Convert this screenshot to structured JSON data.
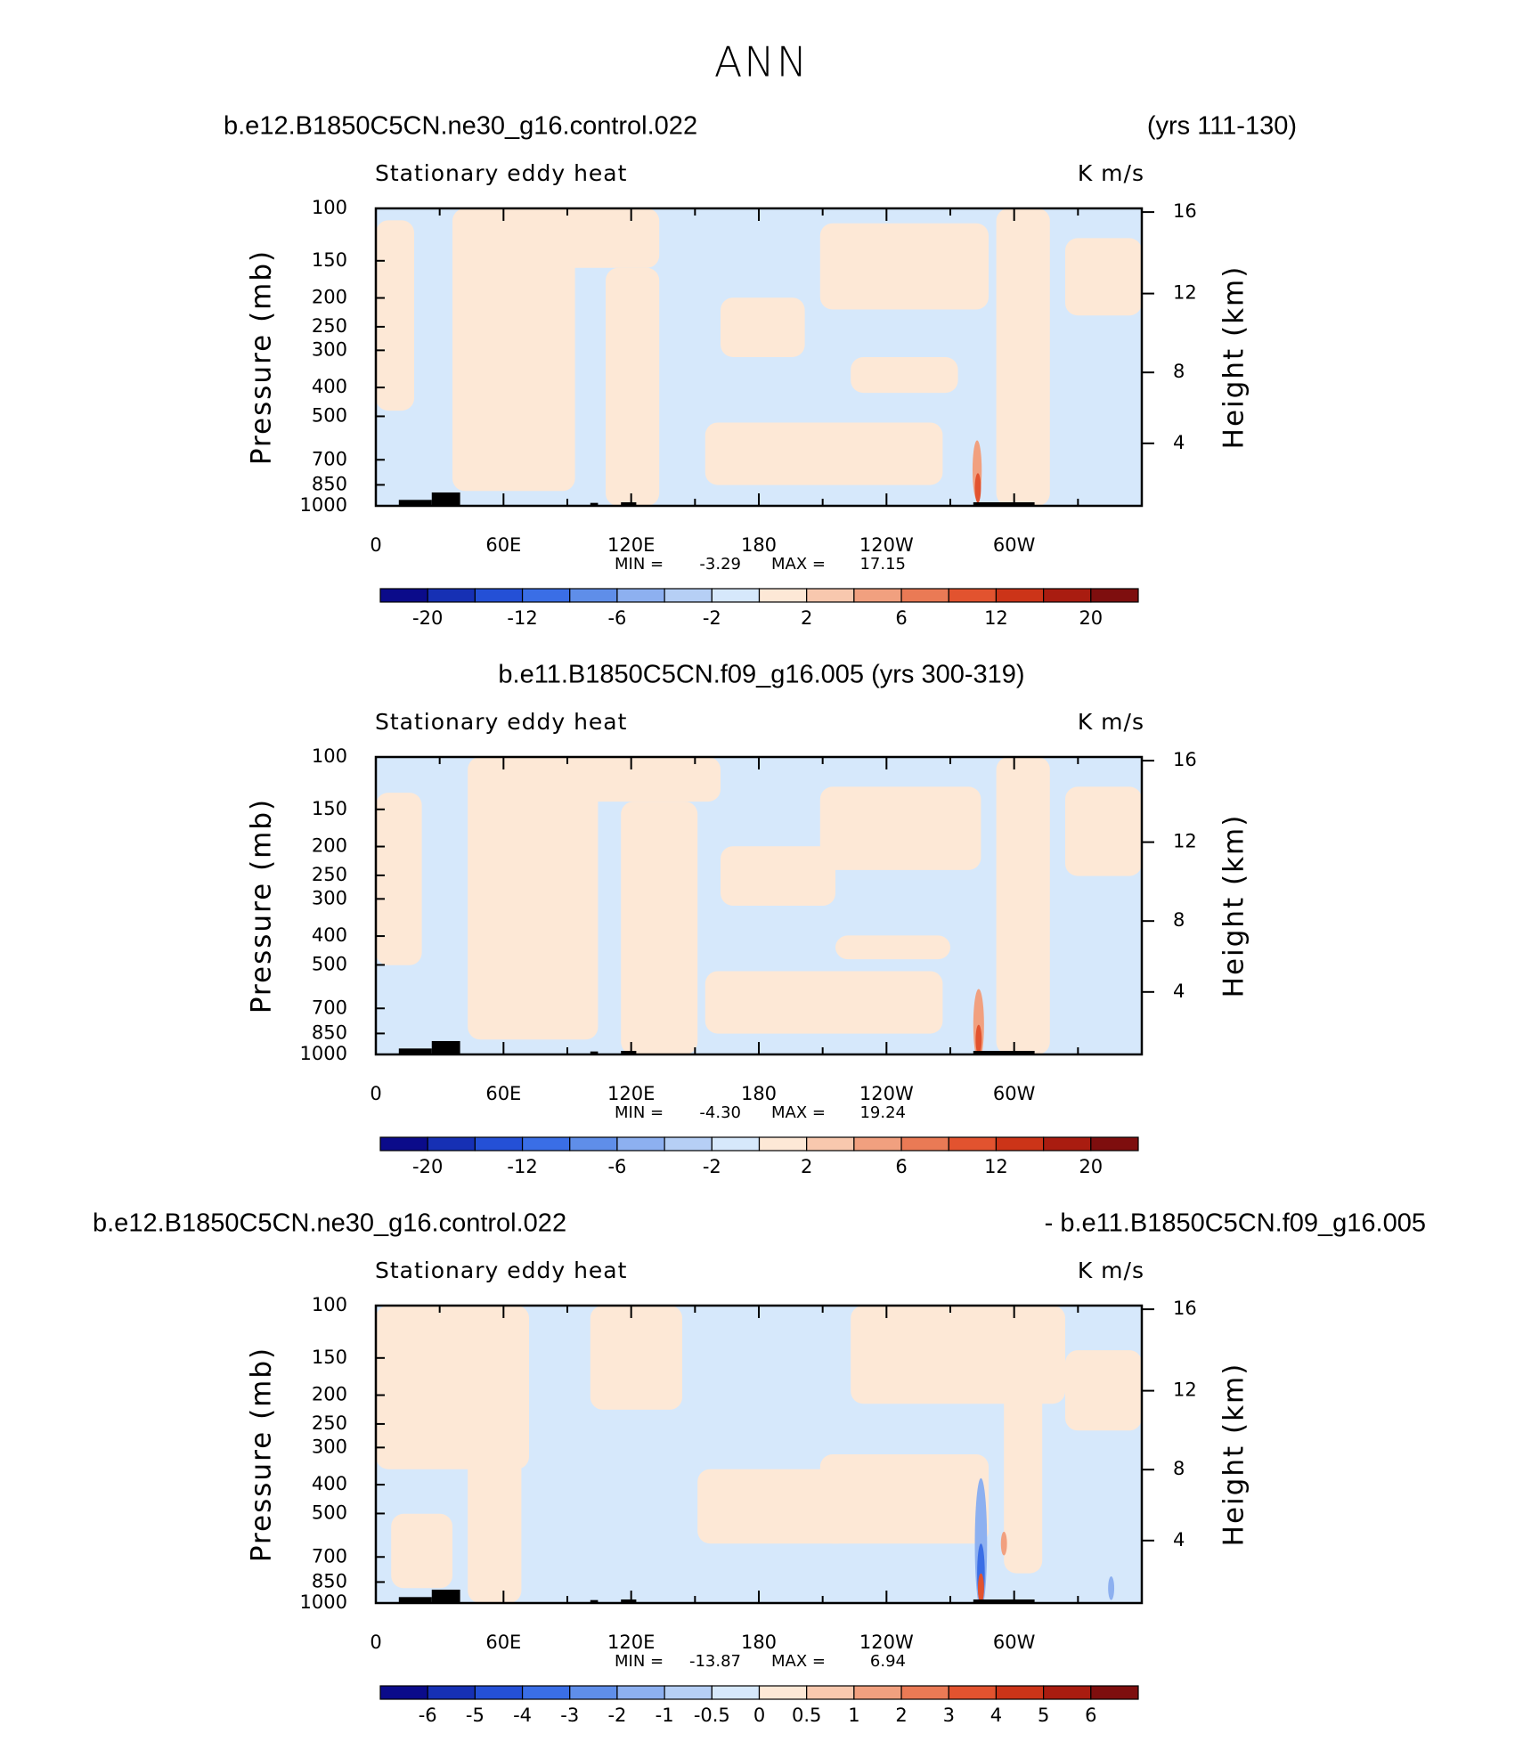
{
  "title": "ANN",
  "chart_data": [
    {
      "type": "contour",
      "title_left": "b.e12.B1850C5CN.ne30_g16.control.022",
      "title_right": "(yrs 111-130)",
      "subtitle_left": "Stationary eddy heat",
      "subtitle_right": "K m/s",
      "ylabel": "Pressure (mb)",
      "y2label": "Height (km)",
      "xlim": [
        0,
        360
      ],
      "xticks": [
        0,
        {
          "value": 60,
          "label": "60E"
        },
        {
          "value": 120,
          "label": "120E"
        },
        180,
        {
          "value": 240,
          "label": "120W"
        },
        {
          "value": 300,
          "label": "60W"
        }
      ],
      "ylim": [
        1000,
        100
      ],
      "ylog": true,
      "yticks": [
        100,
        150,
        200,
        250,
        300,
        400,
        500,
        700,
        850,
        1000
      ],
      "y2ticks": [
        4,
        8,
        12,
        16
      ],
      "min_label": "MIN =",
      "min": -3.29,
      "max_label": "MAX =",
      "max": 17.15,
      "colorbar_ticks": [
        -20,
        null,
        -12,
        null,
        -6,
        null,
        -2,
        null,
        2,
        null,
        6,
        null,
        12,
        null,
        20
      ],
      "colors": [
        "#0b0b8a",
        "#1630b4",
        "#2450d6",
        "#3a6ee6",
        "#5f8ee9",
        "#8db0f0",
        "#b6cff5",
        "#d6e8fb",
        "#fde8d6",
        "#f8c8ae",
        "#f1a07f",
        "#ea7a55",
        "#e2532f",
        "#cc3418",
        "#a91c10",
        "#7e0e0e"
      ]
    },
    {
      "type": "contour",
      "title": "b.e11.B1850C5CN.f09_g16.005 (yrs 300-319)",
      "subtitle_left": "Stationary eddy heat",
      "subtitle_right": "K m/s",
      "ylabel": "Pressure (mb)",
      "y2label": "Height (km)",
      "xlim": [
        0,
        360
      ],
      "xticks": [
        0,
        {
          "value": 60,
          "label": "60E"
        },
        {
          "value": 120,
          "label": "120E"
        },
        180,
        {
          "value": 240,
          "label": "120W"
        },
        {
          "value": 300,
          "label": "60W"
        }
      ],
      "ylim": [
        1000,
        100
      ],
      "ylog": true,
      "yticks": [
        100,
        150,
        200,
        250,
        300,
        400,
        500,
        700,
        850,
        1000
      ],
      "y2ticks": [
        4,
        8,
        12,
        16
      ],
      "min_label": "MIN =",
      "min": {
        "value": -4.3,
        "label": "-4.30"
      },
      "max_label": "MAX =",
      "max": 19.24,
      "colorbar_ticks": [
        -20,
        null,
        -12,
        null,
        -6,
        null,
        -2,
        null,
        2,
        null,
        6,
        null,
        12,
        null,
        20
      ],
      "colors": [
        "#0b0b8a",
        "#1630b4",
        "#2450d6",
        "#3a6ee6",
        "#5f8ee9",
        "#8db0f0",
        "#b6cff5",
        "#d6e8fb",
        "#fde8d6",
        "#f8c8ae",
        "#f1a07f",
        "#ea7a55",
        "#e2532f",
        "#cc3418",
        "#a91c10",
        "#7e0e0e"
      ]
    },
    {
      "type": "contour",
      "title_left": "b.e12.B1850C5CN.ne30_g16.control.022",
      "title_right": "- b.e11.B1850C5CN.f09_g16.005",
      "subtitle_left": "Stationary eddy heat",
      "subtitle_right": "K m/s",
      "ylabel": "Pressure (mb)",
      "y2label": "Height (km)",
      "xlim": [
        0,
        360
      ],
      "xticks": [
        0,
        {
          "value": 60,
          "label": "60E"
        },
        {
          "value": 120,
          "label": "120E"
        },
        180,
        {
          "value": 240,
          "label": "120W"
        },
        {
          "value": 300,
          "label": "60W"
        }
      ],
      "ylim": [
        1000,
        100
      ],
      "ylog": true,
      "yticks": [
        100,
        150,
        200,
        250,
        300,
        400,
        500,
        700,
        850,
        1000
      ],
      "y2ticks": [
        4,
        8,
        12,
        16
      ],
      "min_label": "MIN =",
      "min": -13.87,
      "max_label": "MAX =",
      "max": 6.94,
      "colorbar_ticks": [
        -6,
        -5,
        -4,
        -3,
        -2,
        -1,
        -0.5,
        0,
        0.5,
        1,
        2,
        3,
        4,
        5,
        6
      ],
      "colors": [
        "#0b0b8a",
        "#1630b4",
        "#2450d6",
        "#3a6ee6",
        "#5f8ee9",
        "#8db0f0",
        "#b6cff5",
        "#d6e8fb",
        "#fde8d6",
        "#f8c8ae",
        "#f1a07f",
        "#ea7a55",
        "#e2532f",
        "#cc3418",
        "#a91c10",
        "#7e0e0e"
      ]
    }
  ]
}
